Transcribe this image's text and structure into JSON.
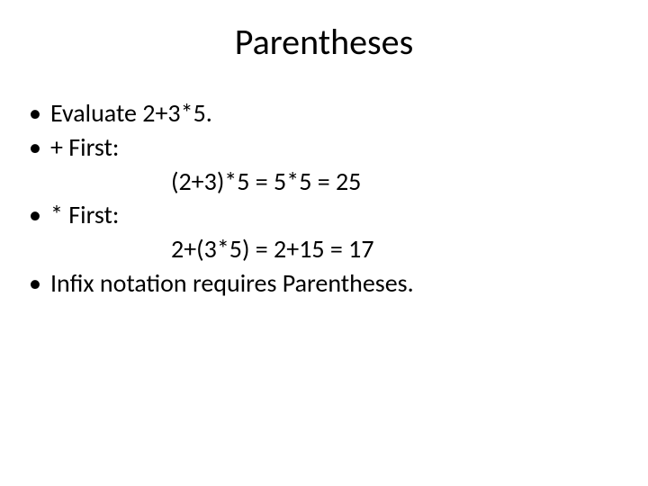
{
  "title": "Parentheses",
  "bullets": {
    "b1": "Evaluate 2+3*5.",
    "b2": "+ First:",
    "eq1": "(2+3)*5 = 5*5 = 25",
    "b3": "* First:",
    "eq2": "2+(3*5) = 2+15 = 17",
    "b4": "Infix notation requires Parentheses."
  },
  "style": {
    "background_color": "#ffffff",
    "text_color": "#000000",
    "title_fontsize": 40,
    "body_fontsize": 28,
    "font_family": "Calibri"
  }
}
